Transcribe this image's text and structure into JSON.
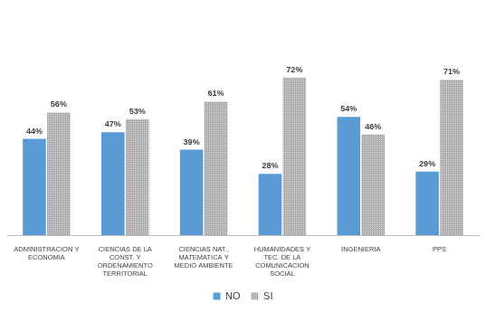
{
  "chart_data": {
    "type": "bar",
    "categories": [
      "ADMINISTRACION Y ECONOMIA",
      "CIENCIAS DE LA CONST. Y ORDENAMIENTO TERRITORIAL",
      "CIENCIAS NAT., MATEMATICA Y MEDIO AMBIENTE",
      "HUMANIDADES Y TEC. DE LA COMUNICACION SOCIAL",
      "INGENIERIA",
      "PPS"
    ],
    "series": [
      {
        "name": "NO",
        "color": "#5b9bd5",
        "values": [
          44,
          47,
          39,
          28,
          54,
          29
        ],
        "value_labels": [
          "44%",
          "47%",
          "39%",
          "28%",
          "54%",
          "29%"
        ]
      },
      {
        "name": "SI",
        "color": "#a6a6a6",
        "values": [
          56,
          53,
          61,
          72,
          46,
          71
        ],
        "value_labels": [
          "56%",
          "53%",
          "61%",
          "72%",
          "46%",
          "71%"
        ]
      }
    ],
    "ylim": [
      0,
      100
    ],
    "yticks": [
      0,
      20,
      40,
      60,
      80,
      100
    ],
    "grid": false,
    "legend": "bottom",
    "data_labels": true,
    "tick_labels": "x"
  }
}
